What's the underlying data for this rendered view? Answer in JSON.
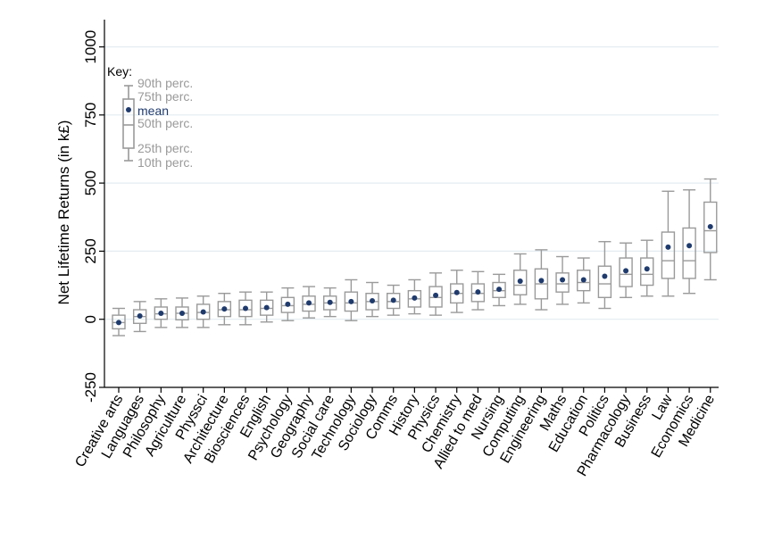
{
  "chart_data": {
    "type": "box",
    "ylabel": "Net Lifetime Returns (in k£)",
    "xlabel": "",
    "ylim": [
      -250,
      1100
    ],
    "yticks": [
      -250,
      0,
      250,
      500,
      750,
      1000
    ],
    "grid": true,
    "colors": {
      "box": "#9a9a9a",
      "mean": "#1f3b6e",
      "grid": "#e3ecf1"
    },
    "key": {
      "title": "Key:",
      "labels": [
        "90th perc.",
        "75th perc.",
        "mean",
        "50th perc.",
        "25th perc.",
        "10th perc."
      ],
      "p90": 900,
      "p75": 840,
      "mean": 800,
      "p50": 745,
      "p25": 650,
      "p10": 600
    },
    "categories": [
      "Creative arts",
      "Languages",
      "Philosophy",
      "Agriculture",
      "Physsci",
      "Architecture",
      "Biosciences",
      "English",
      "Psychology",
      "Geography",
      "Social care",
      "Technology",
      "Sociology",
      "Comms",
      "History",
      "Physics",
      "Chemistry",
      "Allied to med",
      "Nursing",
      "Computing",
      "Engineering",
      "Maths",
      "Education",
      "Politics",
      "Pharmacology",
      "Business",
      "Law",
      "Economics",
      "Medicine"
    ],
    "boxes": [
      {
        "p10": -60,
        "p25": -35,
        "median": -12,
        "p75": 15,
        "p90": 40,
        "mean": -12
      },
      {
        "p10": -45,
        "p25": -15,
        "median": 10,
        "p75": 35,
        "p90": 65,
        "mean": 12
      },
      {
        "p10": -30,
        "p25": 0,
        "median": 20,
        "p75": 45,
        "p90": 75,
        "mean": 22
      },
      {
        "p10": -30,
        "p25": -2,
        "median": 22,
        "p75": 45,
        "p90": 78,
        "mean": 22
      },
      {
        "p10": -30,
        "p25": 0,
        "median": 25,
        "p75": 55,
        "p90": 85,
        "mean": 27
      },
      {
        "p10": -20,
        "p25": 10,
        "median": 35,
        "p75": 65,
        "p90": 95,
        "mean": 38
      },
      {
        "p10": -20,
        "p25": 10,
        "median": 35,
        "p75": 70,
        "p90": 100,
        "mean": 40
      },
      {
        "p10": -10,
        "p25": 15,
        "median": 40,
        "p75": 70,
        "p90": 100,
        "mean": 43
      },
      {
        "p10": -5,
        "p25": 25,
        "median": 50,
        "p75": 80,
        "p90": 115,
        "mean": 55
      },
      {
        "p10": 5,
        "p25": 30,
        "median": 55,
        "p75": 85,
        "p90": 120,
        "mean": 60
      },
      {
        "p10": 10,
        "p25": 35,
        "median": 60,
        "p75": 85,
        "p90": 115,
        "mean": 62
      },
      {
        "p10": -5,
        "p25": 30,
        "median": 60,
        "p75": 100,
        "p90": 145,
        "mean": 65
      },
      {
        "p10": 10,
        "p25": 35,
        "median": 65,
        "p75": 95,
        "p90": 135,
        "mean": 68
      },
      {
        "p10": 15,
        "p25": 40,
        "median": 65,
        "p75": 95,
        "p90": 125,
        "mean": 70
      },
      {
        "p10": 20,
        "p25": 45,
        "median": 75,
        "p75": 105,
        "p90": 145,
        "mean": 78
      },
      {
        "p10": 15,
        "p25": 45,
        "median": 80,
        "p75": 120,
        "p90": 170,
        "mean": 88
      },
      {
        "p10": 25,
        "p25": 60,
        "median": 95,
        "p75": 130,
        "p90": 180,
        "mean": 98
      },
      {
        "p10": 35,
        "p25": 65,
        "median": 95,
        "p75": 130,
        "p90": 175,
        "mean": 100
      },
      {
        "p10": 50,
        "p25": 80,
        "median": 105,
        "p75": 135,
        "p90": 165,
        "mean": 110
      },
      {
        "p10": 55,
        "p25": 90,
        "median": 125,
        "p75": 180,
        "p90": 240,
        "mean": 140
      },
      {
        "p10": 35,
        "p25": 75,
        "median": 130,
        "p75": 185,
        "p90": 255,
        "mean": 142
      },
      {
        "p10": 55,
        "p25": 100,
        "median": 130,
        "p75": 170,
        "p90": 230,
        "mean": 145
      },
      {
        "p10": 60,
        "p25": 105,
        "median": 135,
        "p75": 180,
        "p90": 225,
        "mean": 145
      },
      {
        "p10": 40,
        "p25": 80,
        "median": 130,
        "p75": 195,
        "p90": 285,
        "mean": 158
      },
      {
        "p10": 80,
        "p25": 120,
        "median": 165,
        "p75": 225,
        "p90": 280,
        "mean": 178
      },
      {
        "p10": 85,
        "p25": 125,
        "median": 165,
        "p75": 225,
        "p90": 290,
        "mean": 185
      },
      {
        "p10": 85,
        "p25": 150,
        "median": 215,
        "p75": 320,
        "p90": 470,
        "mean": 265
      },
      {
        "p10": 95,
        "p25": 150,
        "median": 215,
        "p75": 335,
        "p90": 475,
        "mean": 270
      },
      {
        "p10": 145,
        "p25": 245,
        "median": 325,
        "p75": 430,
        "p90": 515,
        "mean": 340
      }
    ]
  }
}
